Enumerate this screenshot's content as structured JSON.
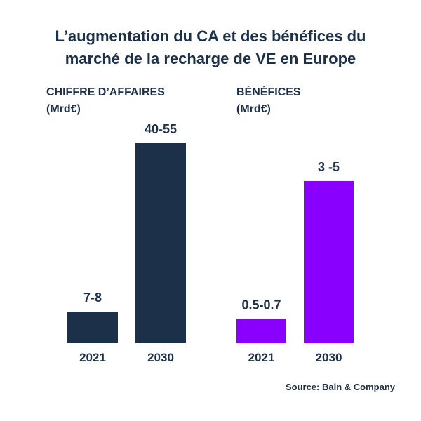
{
  "title": {
    "line1": "L’augmentation du CA et des bénéfices du",
    "line2": "marché de la recharge de VE en Europe"
  },
  "source": "Source: Bain & Company",
  "colors": {
    "revenue": "#1d3049",
    "profit": "#8a00ff",
    "text": "#1d3049"
  },
  "chart_data": [
    {
      "type": "bar",
      "title_line1": "CHIFFRE D’AFFAIRES",
      "title_line2": "(Mrd€)",
      "categories": [
        "2021",
        "2030"
      ],
      "labels": [
        "7-8",
        "40-55"
      ],
      "values": [
        7.5,
        47.5
      ],
      "value_range_low": [
        7,
        40
      ],
      "value_range_high": [
        8,
        55
      ]
    },
    {
      "type": "bar",
      "title_line1": "BÉNÉFICES",
      "title_line2": "(Mrd€)",
      "categories": [
        "2021",
        "2030"
      ],
      "labels": [
        "0.5-0.7",
        "3 -5"
      ],
      "values": [
        0.6,
        4
      ],
      "value_range_low": [
        0.5,
        3
      ],
      "value_range_high": [
        0.7,
        5
      ]
    }
  ]
}
